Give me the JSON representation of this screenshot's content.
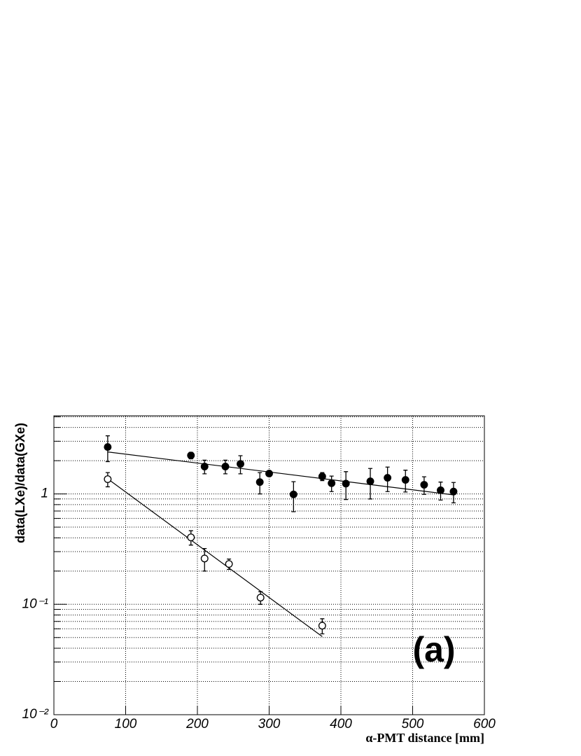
{
  "chart_data": {
    "type": "scatter",
    "log_y": true,
    "grid": true,
    "y_label": "data(LXe)/data(GXe)",
    "x_label": "α-PMT distance [mm]",
    "annotation": "(a)",
    "xlim": [
      0,
      600
    ],
    "xticks": [
      0,
      100,
      200,
      300,
      400,
      500,
      600
    ],
    "ylim": [
      0.01,
      5.1
    ],
    "yticks": [
      {
        "value": 0.01,
        "label": "10⁻²"
      },
      {
        "value": 0.1,
        "label": "10⁻¹"
      },
      1
    ],
    "yminorticks": [
      0.02,
      0.03,
      0.04,
      0.05,
      0.06,
      0.07,
      0.08,
      0.09,
      0.2,
      0.3,
      0.4,
      0.5,
      0.6,
      0.7,
      0.8,
      0.9,
      2,
      3,
      4,
      5
    ],
    "series": [
      {
        "color": "#000000",
        "fill": "#000000",
        "x": [
          75,
          191,
          210,
          239,
          260,
          287,
          300,
          334,
          374,
          387,
          407,
          441,
          465,
          490,
          516,
          539,
          557
        ],
        "values": [
          2.66,
          2.23,
          1.77,
          1.77,
          1.87,
          1.28,
          1.53,
          0.99,
          1.44,
          1.25,
          1.24,
          1.3,
          1.4,
          1.34,
          1.21,
          1.08,
          1.05
        ],
        "errors": [
          0.7,
          0.15,
          0.25,
          0.25,
          0.35,
          0.28,
          0.08,
          0.3,
          0.12,
          0.2,
          0.35,
          0.4,
          0.35,
          0.3,
          0.22,
          0.2,
          0.22
        ],
        "fit": {
          "x": [
            75,
            557
          ],
          "values": [
            2.4,
            0.98
          ]
        }
      },
      {
        "color": "#000000",
        "fill": "#ffffff",
        "x": [
          75,
          191,
          210,
          244,
          288,
          374
        ],
        "values": [
          1.36,
          0.404,
          0.26,
          0.232,
          0.115,
          0.064
        ],
        "errors": [
          0.2,
          0.06,
          0.06,
          0.025,
          0.015,
          0.01
        ],
        "fit": {
          "x": [
            75,
            374
          ],
          "values": [
            1.37,
            0.051
          ]
        }
      }
    ]
  }
}
